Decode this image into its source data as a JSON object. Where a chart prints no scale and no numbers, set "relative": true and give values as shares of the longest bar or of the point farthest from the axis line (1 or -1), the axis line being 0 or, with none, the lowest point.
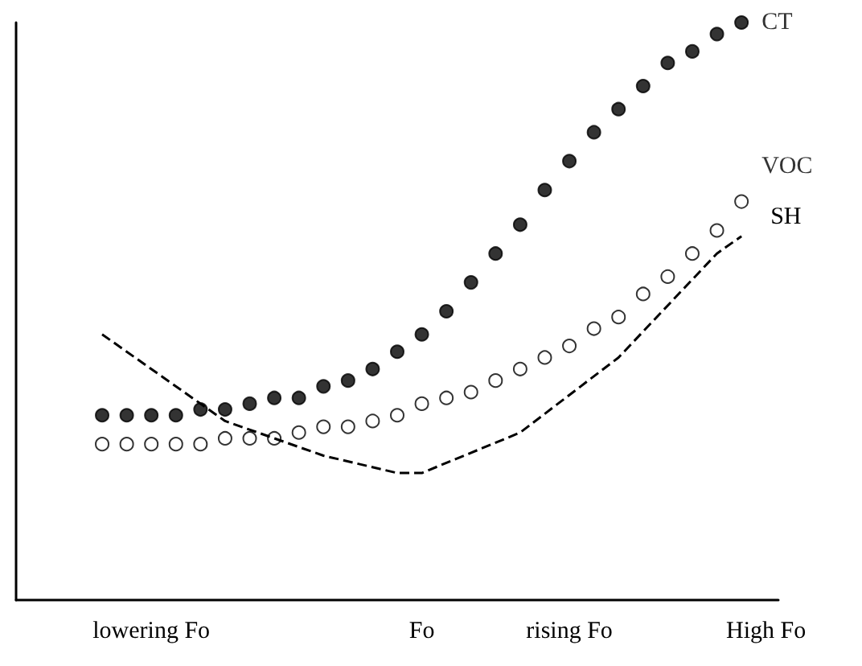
{
  "chart_data": {
    "type": "scatter",
    "relative": true,
    "grid": false,
    "legend": false,
    "categories": [
      null,
      null,
      null,
      null,
      null,
      "lowering Fo",
      null,
      null,
      null,
      null,
      null,
      null,
      null,
      null,
      null,
      null,
      "Fo",
      null,
      null,
      null,
      null,
      null,
      "rising Fo",
      null,
      null,
      null,
      null,
      null,
      null,
      null,
      "High Fo"
    ],
    "series": [
      {
        "name": "CT",
        "marker": "circle",
        "color": "#000000",
        "values": [
          null,
          null,
          null,
          0.32,
          0.32,
          0.32,
          0.32,
          0.33,
          0.33,
          0.34,
          0.35,
          0.35,
          0.37,
          0.38,
          0.4,
          0.43,
          0.46,
          0.5,
          0.55,
          0.6,
          0.65,
          0.71,
          0.76,
          0.81,
          0.85,
          0.89,
          0.93,
          0.95,
          0.98,
          1,
          null
        ]
      },
      {
        "name": "VOC",
        "marker": "circle",
        "color": "#ffffff",
        "values": [
          null,
          null,
          null,
          0.27,
          0.27,
          0.27,
          0.27,
          0.27,
          0.28,
          0.28,
          0.28,
          0.29,
          0.3,
          0.3,
          0.31,
          0.32,
          0.34,
          0.35,
          0.36,
          0.38,
          0.4,
          0.42,
          0.44,
          0.47,
          0.49,
          0.53,
          0.56,
          0.6,
          0.64,
          0.69,
          null
        ]
      },
      {
        "name": "SH",
        "type": "line",
        "marker": "none",
        "line_style": "dashed",
        "color": "#000000",
        "values": [
          null,
          null,
          null,
          0.46,
          null,
          null,
          null,
          null,
          0.31,
          null,
          null,
          null,
          0.25,
          null,
          null,
          0.22,
          0.22,
          null,
          null,
          null,
          0.29,
          null,
          null,
          null,
          0.42,
          null,
          null,
          null,
          0.6,
          0.63,
          null
        ]
      }
    ]
  }
}
